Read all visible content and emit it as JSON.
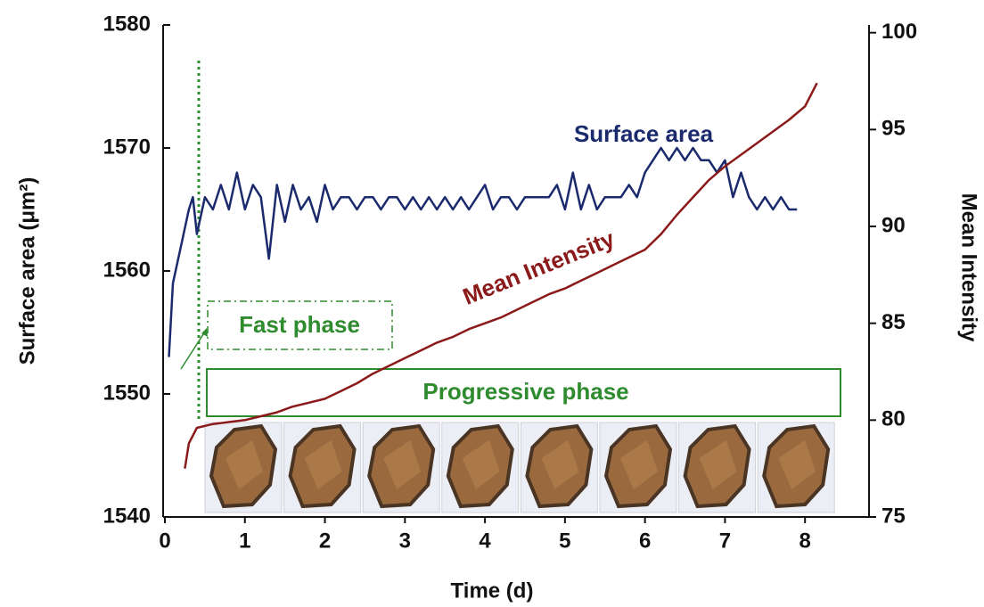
{
  "chart_data": {
    "type": "line",
    "xlabel": "Time (d)",
    "ylabel": "Surface area (μm²)",
    "y2label": "Mean Intensity",
    "xlim": [
      0,
      8.8
    ],
    "xticks": [
      0,
      1,
      2,
      3,
      4,
      5,
      6,
      7,
      8
    ],
    "ylim": [
      1540,
      1580
    ],
    "yticks": [
      1540,
      1550,
      1560,
      1570,
      1580
    ],
    "y2lim": [
      75,
      100.4
    ],
    "y2ticks": [
      75,
      80,
      85,
      90,
      95,
      100
    ],
    "annotations": [
      "Surface area",
      "Mean Intensity",
      "Fast phase",
      "Progressive phase"
    ],
    "series": [
      {
        "name": "Surface area",
        "color": "#1a2a6c",
        "x": [
          0.05,
          0.1,
          0.2,
          0.3,
          0.35,
          0.4,
          0.5,
          0.6,
          0.7,
          0.8,
          0.9,
          1.0,
          1.1,
          1.2,
          1.3,
          1.4,
          1.5,
          1.6,
          1.7,
          1.8,
          1.9,
          2.0,
          2.1,
          2.2,
          2.3,
          2.4,
          2.5,
          2.6,
          2.7,
          2.8,
          2.9,
          3.0,
          3.1,
          3.2,
          3.3,
          3.4,
          3.5,
          3.6,
          3.7,
          3.8,
          3.9,
          4.0,
          4.1,
          4.2,
          4.3,
          4.4,
          4.5,
          4.6,
          4.7,
          4.8,
          4.9,
          5.0,
          5.1,
          5.2,
          5.3,
          5.4,
          5.5,
          5.6,
          5.7,
          5.8,
          5.9,
          6.0,
          6.1,
          6.2,
          6.3,
          6.4,
          6.5,
          6.6,
          6.7,
          6.8,
          6.9,
          7.0,
          7.1,
          7.2,
          7.3,
          7.4,
          7.5,
          7.6,
          7.7,
          7.8,
          7.9
        ],
        "values": [
          1553,
          1559,
          1562,
          1565,
          1566,
          1563,
          1566,
          1565,
          1567,
          1565,
          1568,
          1565,
          1567,
          1566,
          1561,
          1567,
          1564,
          1567,
          1565,
          1566,
          1564,
          1567,
          1565,
          1566,
          1566,
          1565,
          1566,
          1566,
          1565,
          1566,
          1566,
          1565,
          1566,
          1565,
          1566,
          1565,
          1566,
          1565,
          1566,
          1565,
          1566,
          1567,
          1565,
          1566,
          1566,
          1565,
          1566,
          1566,
          1566,
          1566,
          1567,
          1565,
          1568,
          1565,
          1567,
          1565,
          1566,
          1566,
          1566,
          1567,
          1566,
          1568,
          1569,
          1570,
          1569,
          1570,
          1569,
          1570,
          1569,
          1569,
          1568,
          1569,
          1566,
          1568,
          1566,
          1565,
          1566,
          1565,
          1566,
          1565,
          1565
        ]
      },
      {
        "name": "Mean Intensity",
        "color": "#8b1a1a",
        "axis": "y2",
        "x": [
          0.25,
          0.3,
          0.4,
          0.6,
          0.8,
          1.0,
          1.2,
          1.4,
          1.6,
          1.8,
          2.0,
          2.2,
          2.4,
          2.6,
          2.8,
          3.0,
          3.2,
          3.4,
          3.6,
          3.8,
          4.0,
          4.2,
          4.4,
          4.6,
          4.8,
          5.0,
          5.2,
          5.4,
          5.6,
          5.8,
          6.0,
          6.2,
          6.4,
          6.6,
          6.8,
          7.0,
          7.2,
          7.4,
          7.6,
          7.8,
          8.0,
          8.15
        ],
        "values": [
          77.5,
          78.8,
          79.6,
          79.8,
          79.9,
          80.0,
          80.2,
          80.4,
          80.7,
          80.9,
          81.1,
          81.5,
          81.9,
          82.4,
          82.8,
          83.2,
          83.6,
          84.0,
          84.3,
          84.7,
          85.0,
          85.3,
          85.7,
          86.1,
          86.5,
          86.8,
          87.2,
          87.6,
          88.0,
          88.4,
          88.8,
          89.6,
          90.6,
          91.5,
          92.4,
          93.1,
          93.7,
          94.3,
          94.9,
          95.5,
          96.2,
          97.4
        ]
      }
    ]
  }
}
